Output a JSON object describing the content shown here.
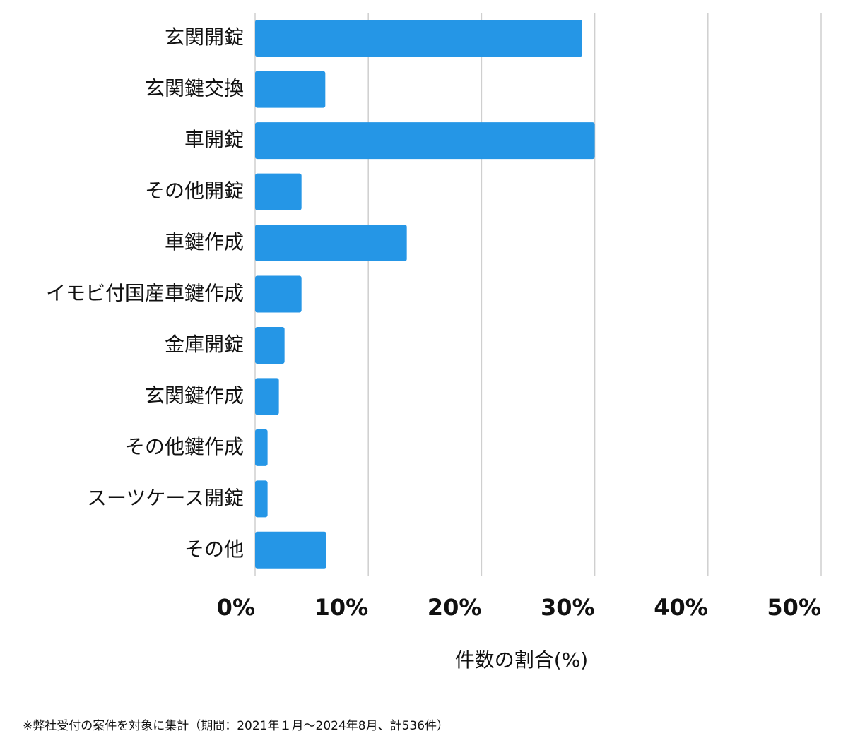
{
  "chart_data": {
    "type": "bar",
    "orientation": "horizontal",
    "categories": [
      "玄関開錠",
      "玄関鍵交換",
      "車開錠",
      "その他開錠",
      "車鍵作成",
      "イモビ付国産車鍵作成",
      "金庫開錠",
      "玄関鍵作成",
      "その他鍵作成",
      "スーツケース開錠",
      "その他"
    ],
    "values": [
      28.9,
      6.2,
      30.0,
      4.1,
      13.4,
      4.1,
      2.6,
      2.1,
      1.1,
      1.1,
      6.3
    ],
    "color": "#2596e6",
    "xlim": [
      0,
      50
    ],
    "xticks": [
      {
        "value": 0,
        "label": "0%"
      },
      {
        "value": 10,
        "label": "10%"
      },
      {
        "value": 20,
        "label": "20%"
      },
      {
        "value": 30,
        "label": "30%"
      },
      {
        "value": 40,
        "label": "40%"
      },
      {
        "value": 50,
        "label": "50%"
      }
    ],
    "x_label": "件数の割合(%)",
    "grid": true,
    "footnote": "※弊社受付の案件を対象に集計（期間：2021年１月〜2024年8月、計536件）"
  }
}
